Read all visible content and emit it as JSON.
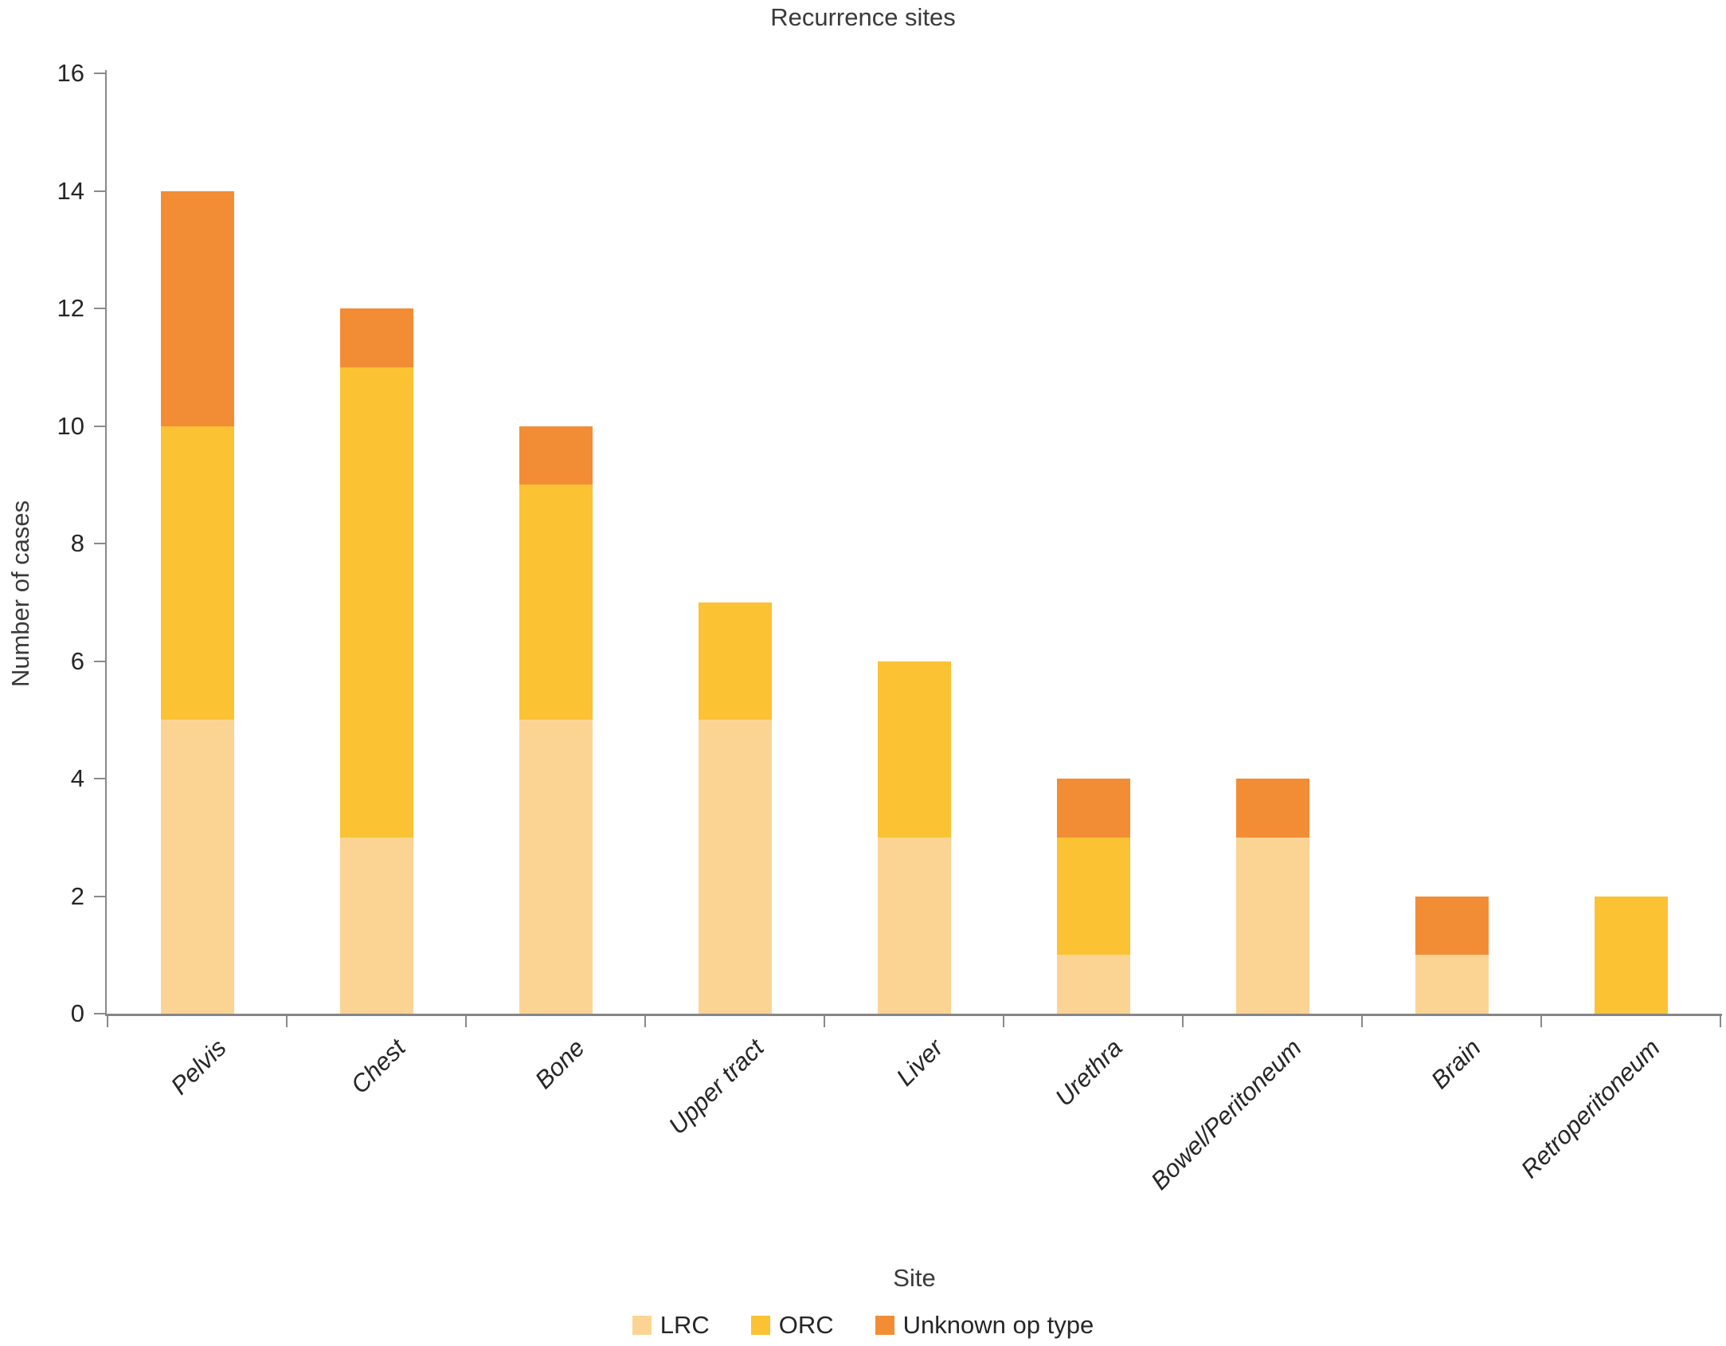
{
  "chart_data": {
    "type": "bar",
    "stacked": true,
    "title": "Recurrence sites",
    "xlabel": "Site",
    "ylabel": "Number of cases",
    "ylim": [
      0,
      16
    ],
    "ytick_step": 2,
    "ytick_labels": [
      "0",
      "2",
      "4",
      "6",
      "8",
      "10",
      "12",
      "14",
      "16"
    ],
    "grid": false,
    "legend_position": "bottom",
    "categories": [
      "Pelvis",
      "Chest",
      "Bone",
      "Upper tract",
      "Liver",
      "Urethra",
      "Bowel/Peritoneum",
      "Brain",
      "Retroperitoneum"
    ],
    "series": [
      {
        "name": "LRC",
        "color": "#FBD494",
        "values": [
          5,
          3,
          5,
          5,
          3,
          1,
          3,
          1,
          0
        ]
      },
      {
        "name": "ORC",
        "color": "#FBC234",
        "values": [
          5,
          8,
          4,
          2,
          3,
          2,
          0,
          0,
          2
        ]
      },
      {
        "name": "Unknown op type",
        "color": "#F28D35",
        "values": [
          4,
          1,
          1,
          0,
          0,
          1,
          1,
          1,
          0
        ]
      }
    ],
    "totals": [
      14,
      12,
      10,
      7,
      6,
      4,
      4,
      2,
      2
    ]
  },
  "colors": {
    "axis": "#8a8a8a",
    "text": "#262626"
  }
}
